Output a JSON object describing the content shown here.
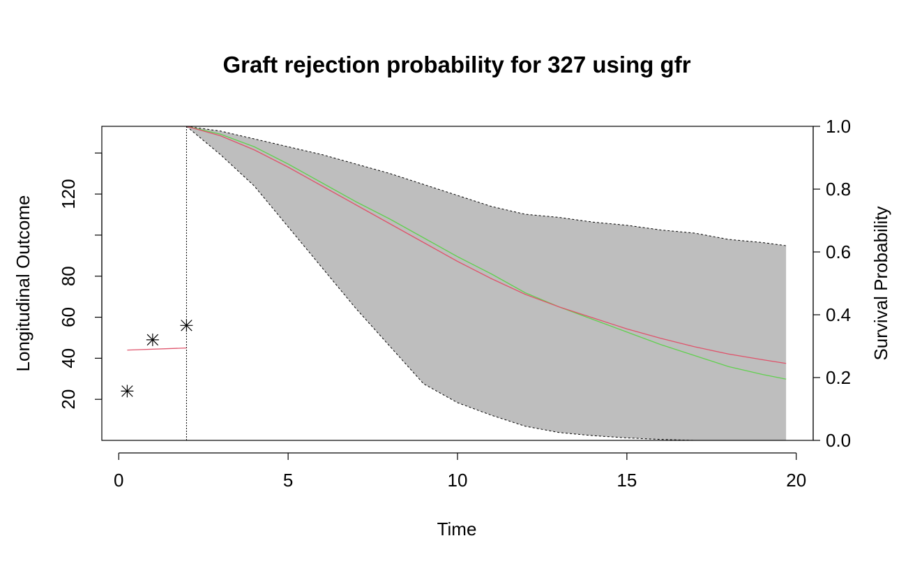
{
  "chart_data": {
    "type": "line",
    "title": "Graft rejection probability for 327 using gfr",
    "xlabel": "Time",
    "ylabel_left": "Longitudinal Outcome",
    "ylabel_right": "Survival Probability",
    "xlim": [
      -0.5,
      20.5
    ],
    "ylim_left": [
      0,
      153
    ],
    "ylim_right": [
      0,
      1
    ],
    "x_ticks": [
      0,
      5,
      10,
      15,
      20
    ],
    "y_left_ticks": [
      20,
      40,
      60,
      80,
      120
    ],
    "y_right_ticks": [
      "0.0",
      "0.2",
      "0.4",
      "0.6",
      "0.8",
      "1.0"
    ],
    "last_observation_time": 2.0,
    "observed_outcome": {
      "marker": "asterisk",
      "x": [
        0.25,
        1.0,
        2.0
      ],
      "y": [
        24,
        49,
        56
      ]
    },
    "fitted_longitudinal": {
      "color": "#DF536B",
      "x": [
        0.25,
        2.0
      ],
      "y": [
        44,
        45
      ]
    },
    "survival_mean": {
      "color": "#DF536B",
      "x": [
        2,
        3,
        4,
        5,
        6,
        7,
        8,
        9,
        10,
        11,
        12,
        13,
        14,
        15,
        16,
        17,
        18,
        19,
        19.7
      ],
      "y": [
        1.0,
        0.97,
        0.925,
        0.87,
        0.81,
        0.75,
        0.69,
        0.63,
        0.57,
        0.515,
        0.465,
        0.425,
        0.39,
        0.355,
        0.325,
        0.298,
        0.275,
        0.257,
        0.245
      ]
    },
    "survival_median": {
      "color": "#61D04F",
      "x": [
        2,
        3,
        4,
        5,
        6,
        7,
        8,
        9,
        10,
        11,
        12,
        13,
        14,
        15,
        16,
        17,
        18,
        19,
        19.7
      ],
      "y": [
        1.0,
        0.975,
        0.935,
        0.88,
        0.82,
        0.76,
        0.705,
        0.645,
        0.585,
        0.53,
        0.47,
        0.425,
        0.385,
        0.345,
        0.305,
        0.27,
        0.235,
        0.21,
        0.195
      ]
    },
    "confidence_band": {
      "color": "#BEBEBE",
      "x": [
        2,
        3,
        4,
        5,
        6,
        7,
        8,
        9,
        10,
        11,
        12,
        13,
        14,
        15,
        16,
        17,
        18,
        19,
        19.7
      ],
      "upper": [
        1.0,
        0.985,
        0.96,
        0.935,
        0.91,
        0.88,
        0.85,
        0.815,
        0.78,
        0.745,
        0.72,
        0.71,
        0.695,
        0.685,
        0.67,
        0.66,
        0.64,
        0.63,
        0.62
      ],
      "lower": [
        1.0,
        0.91,
        0.81,
        0.68,
        0.55,
        0.42,
        0.3,
        0.18,
        0.12,
        0.08,
        0.045,
        0.025,
        0.015,
        0.008,
        0.003,
        0.0,
        0.0,
        0.0,
        0.0
      ]
    },
    "grid": false,
    "legend": "none"
  }
}
